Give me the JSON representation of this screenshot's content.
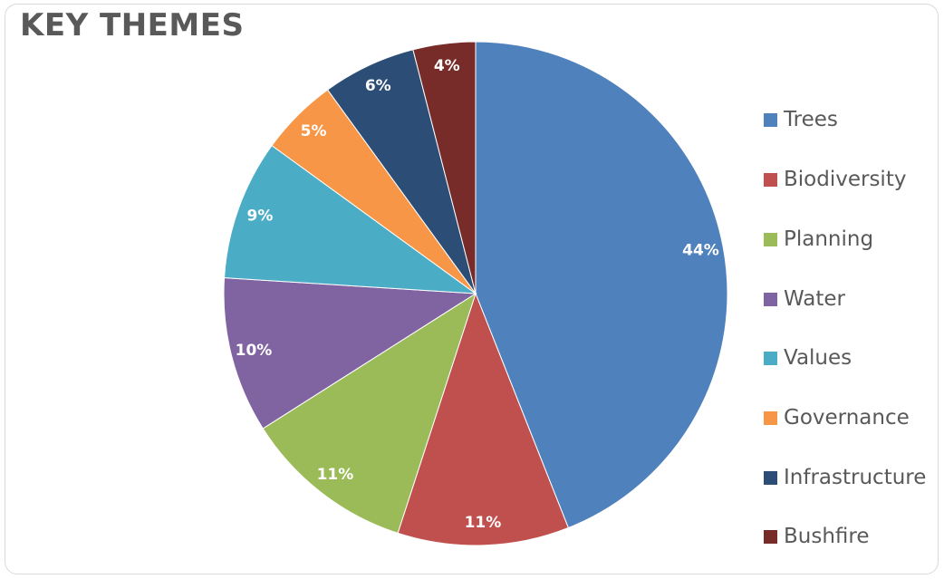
{
  "chart_title": "KEY THEMES",
  "chart_data": {
    "type": "pie",
    "title": "KEY THEMES",
    "categories": [
      "Trees",
      "Biodiversity",
      "Planning",
      "Water",
      "Values",
      "Governance",
      "Infrastructure",
      "Bushfire"
    ],
    "values": [
      44,
      11,
      11,
      10,
      9,
      5,
      6,
      4
    ],
    "data_labels": [
      "44%",
      "11%",
      "11%",
      "10%",
      "9%",
      "5%",
      "6%",
      "4%"
    ],
    "colors": [
      "#4F81BD",
      "#C0504D",
      "#9BBB59",
      "#8064A2",
      "#4BACC6",
      "#F79646",
      "#2C4D75",
      "#772C2A"
    ],
    "legend_position": "right",
    "grid": false
  },
  "legend": [
    {
      "label": "Trees",
      "color": "#4F81BD"
    },
    {
      "label": "Biodiversity",
      "color": "#C0504D"
    },
    {
      "label": "Planning",
      "color": "#9BBB59"
    },
    {
      "label": "Water",
      "color": "#8064A2"
    },
    {
      "label": "Values",
      "color": "#4BACC6"
    },
    {
      "label": "Governance",
      "color": "#F79646"
    },
    {
      "label": "Infrastructure",
      "color": "#2C4D75"
    },
    {
      "label": "Bushfire",
      "color": "#772C2A"
    }
  ]
}
